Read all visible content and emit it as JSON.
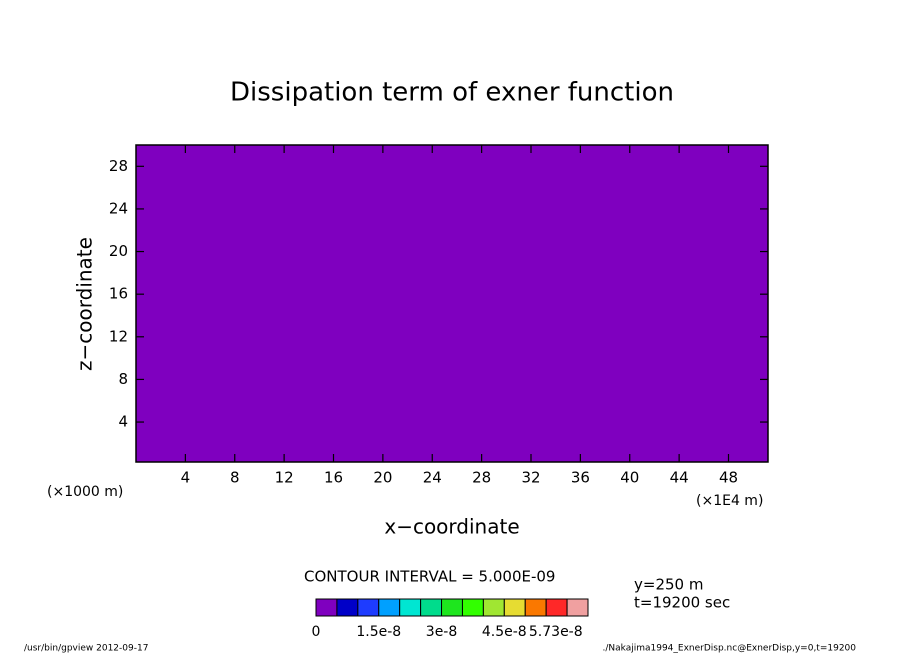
{
  "chart_data": {
    "type": "contour",
    "title": "Dissipation term of exner function",
    "x_label": "x−coordinate",
    "y_label": "z−coordinate",
    "x_offset_label": "(×1000 m)",
    "x_scale_label": "(×1E4 m)",
    "xlim": [
      0,
      51.2
    ],
    "ylim": [
      0.25,
      30
    ],
    "xticks": [
      4,
      8,
      12,
      16,
      20,
      24,
      28,
      32,
      36,
      40,
      44,
      48
    ],
    "yticks": [
      4,
      8,
      12,
      16,
      20,
      24,
      28
    ],
    "fill_color": "#7f00bf",
    "colorbar": {
      "title": "CONTOUR INTERVAL = 5.000E-09",
      "interval": 5e-09,
      "colors": [
        "#7f00bf",
        "#0000c8",
        "#1e3cff",
        "#00a0ff",
        "#00e6d2",
        "#00dc8c",
        "#1ee61e",
        "#32ff00",
        "#a0e632",
        "#e6dc32",
        "#fa7800",
        "#ff2828",
        "#f0a0a0"
      ],
      "ticks": [
        0,
        {
          "value": 1.5e-08,
          "label": "1.5e-8"
        },
        {
          "value": 3e-08,
          "label": "3e-8"
        },
        {
          "value": 4.5e-08,
          "label": "4.5e-8"
        },
        {
          "value": 5.73e-08,
          "label": "5.73e-8"
        }
      ]
    },
    "annotations": [
      "y=250 m",
      "t=19200 sec"
    ],
    "footer_left": "/usr/bin/gpview   2012-09-17",
    "footer_right": "./Nakajima1994_ExnerDisp.nc@ExnerDisp,y=0,t=19200"
  }
}
